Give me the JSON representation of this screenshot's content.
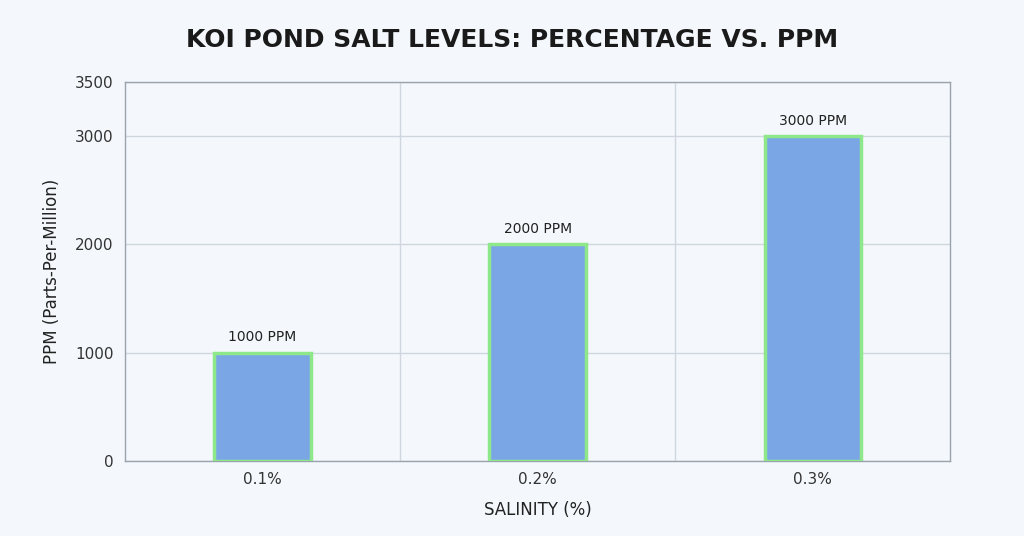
{
  "chart_data": {
    "type": "bar",
    "title": "KOI POND SALT LEVELS: PERCENTAGE VS. PPM",
    "x_label": "SALINITY (%)",
    "y_label": "PPM (Parts-Per-Million)",
    "categories": [
      "0.1%",
      "0.2%",
      "0.3%"
    ],
    "values": [
      1000,
      2000,
      3000
    ],
    "value_labels": [
      "1000 PPM",
      "2000 PPM",
      "3000 PPM"
    ],
    "color": "#7aa6e6",
    "ylim": [
      0,
      3500
    ],
    "yticks": [
      0,
      1000,
      2000,
      3000,
      3500
    ],
    "grid": true,
    "data_labels": true
  }
}
